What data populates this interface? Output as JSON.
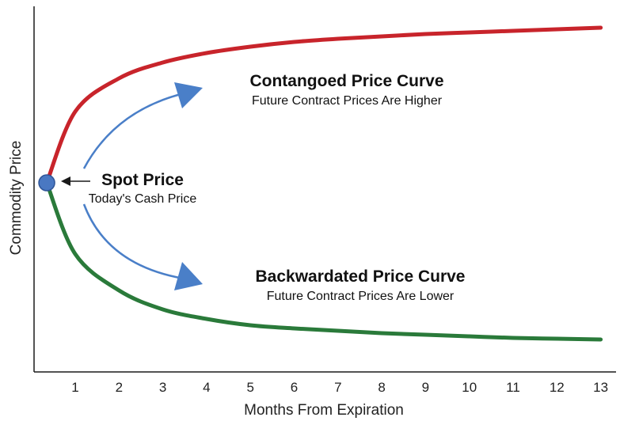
{
  "chart_data": {
    "type": "line",
    "xlabel": "Months From Expiration",
    "ylabel": "Commodity Price",
    "x_ticks": [
      1,
      2,
      3,
      4,
      5,
      6,
      7,
      8,
      9,
      10,
      11,
      12,
      13
    ],
    "xlim": [
      0,
      13.3
    ],
    "y_ticks_shown": false,
    "grid": false,
    "spot": {
      "label": "Spot Price",
      "sublabel": "Today's Cash Price",
      "x": 0.35,
      "color": "#4a78c2"
    },
    "series": [
      {
        "key": "contango",
        "color": "#c8242b",
        "x": [
          0.35,
          1,
          2,
          3,
          4,
          5,
          6,
          7,
          8,
          9,
          10,
          11,
          12,
          13
        ],
        "y_relative": [
          0,
          0.45,
          0.66,
          0.76,
          0.82,
          0.86,
          0.89,
          0.91,
          0.925,
          0.94,
          0.95,
          0.96,
          0.97,
          0.98
        ]
      },
      {
        "key": "backwardation",
        "color": "#2a7a3a",
        "x": [
          0.35,
          1,
          2,
          3,
          4,
          5,
          6,
          7,
          8,
          9,
          10,
          11,
          12,
          13
        ],
        "y_relative": [
          0,
          -0.45,
          -0.68,
          -0.8,
          -0.86,
          -0.9,
          -0.92,
          -0.935,
          -0.95,
          -0.96,
          -0.97,
          -0.98,
          -0.985,
          -0.99
        ]
      }
    ],
    "annotations": [
      {
        "key": "contango",
        "title": "Contangoed Price Curve",
        "subtitle": "Future Contract Prices Are Higher"
      },
      {
        "key": "backwardation",
        "title": "Backwardated Price Curve",
        "subtitle": "Future Contract Prices Are Lower"
      }
    ],
    "arrow_color": "#4a7fc8"
  }
}
